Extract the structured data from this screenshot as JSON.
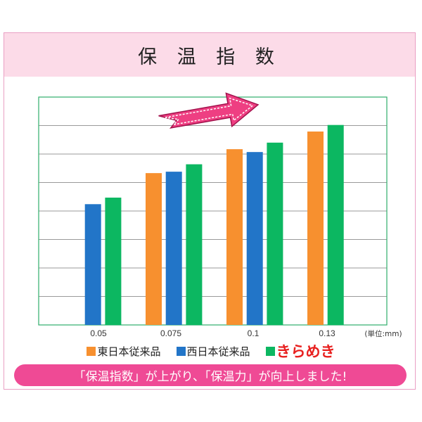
{
  "title": "保 温 指 数",
  "chart_data": {
    "type": "bar",
    "title": "保温指数",
    "categories": [
      "0.05",
      "0.075",
      "0.1",
      "0.13"
    ],
    "unit_label": "(単位:mm)",
    "ylim": [
      0,
      8
    ],
    "grid": true,
    "y_tick_labels_shown": false,
    "legend_position": "bottom",
    "series": [
      {
        "name": "東日本従来品",
        "color": "#f7902f",
        "values": [
          null,
          5.33,
          6.17,
          6.79
        ]
      },
      {
        "name": "西日本従来品",
        "color": "#2275c8",
        "values": [
          4.24,
          5.38,
          6.07,
          null
        ]
      },
      {
        "name": "きらめき",
        "color": "#0cb761",
        "values": [
          4.47,
          5.64,
          6.4,
          7.02
        ]
      }
    ]
  },
  "colors": {
    "frame": "#e9a0c4",
    "title_band": "#fcdbe8",
    "banner": "#ef4a95",
    "arrow": "#ee3f82",
    "plot_border": "#2fae6a",
    "highlight_text": "#e8201f"
  },
  "arrow_icon": "pink-up-right-arrow",
  "banner": "「保温指数」が上がり、「保温力」が向上しました!"
}
